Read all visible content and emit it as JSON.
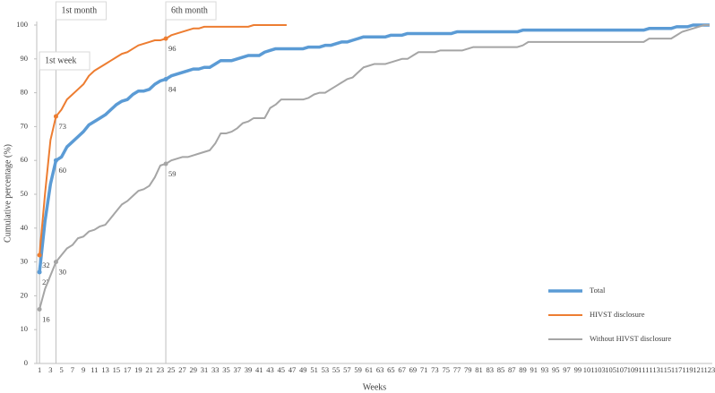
{
  "chart_data": {
    "type": "line",
    "y_label": "Cumulative percentage (%)",
    "x_label": "Weeks",
    "categories": [
      1,
      null,
      3,
      null,
      5,
      null,
      7,
      null,
      9,
      null,
      11,
      null,
      13,
      null,
      15,
      null,
      17,
      null,
      19,
      null,
      21,
      null,
      23,
      null,
      25,
      null,
      27,
      null,
      29,
      null,
      31,
      null,
      33,
      null,
      35,
      null,
      37,
      null,
      39,
      null,
      41,
      null,
      43,
      null,
      45,
      null,
      47,
      null,
      49,
      null,
      51,
      null,
      53,
      null,
      55,
      null,
      57,
      null,
      59,
      null,
      61,
      null,
      63,
      null,
      65,
      null,
      67,
      null,
      69,
      null,
      71,
      null,
      73,
      null,
      75,
      null,
      77,
      null,
      79,
      null,
      81,
      null,
      83,
      null,
      85,
      null,
      87,
      null,
      89,
      null,
      91,
      null,
      93,
      null,
      95,
      null,
      97,
      null,
      99,
      null,
      101,
      null,
      103,
      null,
      105,
      null,
      107,
      null,
      109,
      null,
      111,
      null,
      113,
      null,
      115,
      null,
      117,
      null,
      119,
      null,
      121,
      null,
      123
    ],
    "ylim": [
      0,
      100
    ],
    "yticks": [
      0,
      10,
      20,
      30,
      40,
      50,
      60,
      70,
      80,
      90,
      100
    ],
    "labeled_points": [
      0,
      3,
      23
    ],
    "annotations": [
      {
        "text": "1st month",
        "x": 4
      },
      {
        "text": "6th month",
        "x": 24
      },
      {
        "text": "1st week",
        "x": 1
      }
    ],
    "series": [
      {
        "name": "Total",
        "color": "#5b9bd5",
        "values": [
          27,
          42,
          53,
          60,
          61,
          64,
          65.5,
          67,
          68.5,
          70.5,
          71.5,
          72.5,
          73.5,
          75,
          76.5,
          77.5,
          78,
          79.5,
          80.5,
          80.5,
          81,
          82.5,
          83.5,
          84,
          85,
          85.5,
          86,
          86.5,
          87,
          87,
          87.5,
          87.5,
          88.5,
          89.5,
          89.5,
          89.5,
          90,
          90.5,
          91,
          91,
          91,
          92,
          92.5,
          93,
          93,
          93,
          93,
          93,
          93,
          93.5,
          93.5,
          93.5,
          94,
          94,
          94.5,
          95,
          95,
          95.5,
          96,
          96.5,
          96.5,
          96.5,
          96.5,
          96.5,
          97,
          97,
          97,
          97.5,
          97.5,
          97.5,
          97.5,
          97.5,
          97.5,
          97.5,
          97.5,
          97.5,
          98,
          98,
          98,
          98,
          98,
          98,
          98,
          98,
          98,
          98,
          98,
          98,
          98.5,
          98.5,
          98.5,
          98.5,
          98.5,
          98.5,
          98.5,
          98.5,
          98.5,
          98.5,
          98.5,
          98.5,
          98.5,
          98.5,
          98.5,
          98.5,
          98.5,
          98.5,
          98.5,
          98.5,
          98.5,
          98.5,
          98.5,
          99,
          99,
          99,
          99,
          99,
          99.5,
          99.5,
          99.5,
          100,
          100,
          100,
          100
        ]
      },
      {
        "name": "HIVST disclosure",
        "color": "#ed7d31",
        "values": [
          32,
          50,
          66,
          73,
          75,
          78,
          79.5,
          81,
          82.5,
          85,
          86.5,
          87.5,
          88.5,
          89.5,
          90.5,
          91.5,
          92,
          93,
          94,
          94.5,
          95,
          95.5,
          95.5,
          96,
          97,
          97.5,
          98,
          98.5,
          99,
          99,
          99.5,
          99.5,
          99.5,
          99.5,
          99.5,
          99.5,
          99.5,
          99.5,
          99.5,
          100,
          100,
          100,
          100,
          100,
          100,
          100,
          null,
          null,
          null,
          null,
          null,
          null,
          null,
          null,
          null,
          null,
          null,
          null,
          null,
          null,
          null,
          null,
          null,
          null,
          null,
          null,
          null,
          null,
          null,
          null,
          null,
          null,
          null,
          null,
          null,
          null,
          null,
          null,
          null,
          null,
          null,
          null,
          null,
          null,
          null,
          null,
          null,
          null,
          null,
          null,
          null,
          null,
          null,
          null,
          null,
          null,
          null,
          null,
          null,
          null,
          null,
          null,
          null,
          null,
          null,
          null,
          null,
          null,
          null,
          null,
          null,
          null,
          null,
          null,
          null,
          null,
          null,
          null,
          null,
          null,
          null,
          null,
          null
        ]
      },
      {
        "name": "Without HIVST disclosure",
        "color": "#a5a5a5",
        "values": [
          16,
          22,
          26,
          30,
          32,
          34,
          35,
          37,
          37.5,
          39,
          39.5,
          40.5,
          41,
          43,
          45,
          47,
          48,
          49.5,
          51,
          51.5,
          52.5,
          55,
          58.5,
          59,
          60,
          60.5,
          61,
          61,
          61.5,
          62,
          62.5,
          63,
          65,
          68,
          68,
          68.5,
          69.5,
          71,
          71.5,
          72.5,
          72.5,
          72.5,
          75.5,
          76.5,
          78,
          78,
          78,
          78,
          78,
          78.5,
          79.5,
          80,
          80,
          81,
          82,
          83,
          84,
          84.5,
          86,
          87.5,
          88,
          88.5,
          88.5,
          88.5,
          89,
          89.5,
          90,
          90,
          91,
          92,
          92,
          92,
          92,
          92.5,
          92.5,
          92.5,
          92.5,
          92.5,
          93,
          93.5,
          93.5,
          93.5,
          93.5,
          93.5,
          93.5,
          93.5,
          93.5,
          93.5,
          94,
          95,
          95,
          95,
          95,
          95,
          95,
          95,
          95,
          95,
          95,
          95,
          95,
          95,
          95,
          95,
          95,
          95,
          95,
          95,
          95,
          95,
          95,
          96,
          96,
          96,
          96,
          96,
          97,
          98,
          98.5,
          99,
          99.5,
          100,
          100
        ]
      }
    ]
  }
}
